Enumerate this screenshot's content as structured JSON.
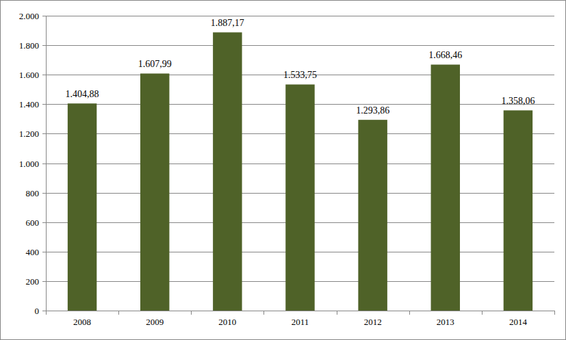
{
  "chart_data": {
    "type": "bar",
    "categories": [
      "2008",
      "2009",
      "2010",
      "2011",
      "2012",
      "2013",
      "2014"
    ],
    "values": [
      1404.88,
      1607.99,
      1887.17,
      1533.75,
      1293.86,
      1668.46,
      1358.06
    ],
    "value_labels": [
      "1.404,88",
      "1.607,99",
      "1.887,17",
      "1.533,75",
      "1.293,86",
      "1.668,46",
      "1.358,06"
    ],
    "color": "#4f6228",
    "ylim": [
      0,
      2000
    ],
    "yticks": [
      0,
      200,
      400,
      600,
      800,
      {
        "value": 1000,
        "label": "1.000"
      },
      {
        "value": 1200,
        "label": "1.200"
      },
      {
        "value": 1400,
        "label": "1.400"
      },
      {
        "value": 1600,
        "label": "1.600"
      },
      {
        "value": 1800,
        "label": "1.800"
      },
      {
        "value": 2000,
        "label": "2.000"
      }
    ],
    "grid": true,
    "data_labels": true
  }
}
